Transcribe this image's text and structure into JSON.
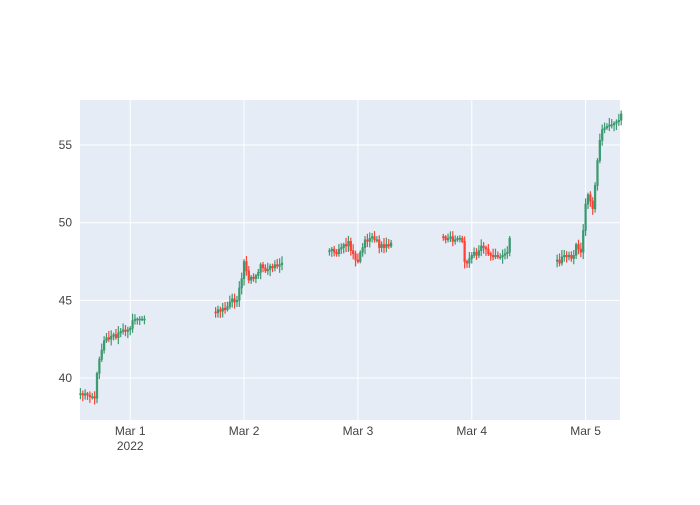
{
  "chart_data": {
    "type": "candlestick",
    "x_axis": {
      "kind": "date",
      "ticks": [
        {
          "value": "2022-03-01",
          "label": "Mar 1",
          "sublabel": "2022"
        },
        {
          "value": "2022-03-02",
          "label": "Mar 2"
        },
        {
          "value": "2022-03-03",
          "label": "Mar 3"
        },
        {
          "value": "2022-03-04",
          "label": "Mar 4"
        },
        {
          "value": "2022-03-05",
          "label": "Mar 5"
        }
      ],
      "range": [
        "2022-02-28 13:25",
        "2022-03-05 07:15"
      ]
    },
    "y_axis": {
      "ticks": [
        40,
        45,
        50,
        55
      ],
      "range": [
        37.3,
        57.9
      ]
    },
    "grid": true,
    "colors": {
      "increasing": "#3D9970",
      "decreasing": "#FF4136",
      "plot_bg": "#E5ECF6",
      "grid": "#FFFFFF"
    },
    "segments": [
      {
        "start": "2022-02-28 13:30",
        "step_minutes": 30,
        "close": [
          39.0,
          38.9,
          39.0,
          38.9,
          38.8,
          38.8,
          38.7,
          40.3,
          41.2,
          41.8,
          42.4,
          42.6,
          42.5,
          42.7,
          42.8,
          42.6,
          42.9,
          43.0,
          43.1,
          43.0,
          43.1,
          43.2,
          43.7,
          43.8,
          43.8,
          43.8,
          43.8,
          43.8
        ]
      },
      {
        "start": "2022-03-01 18:00",
        "step_minutes": 30,
        "close": [
          44.2,
          44.4,
          44.3,
          44.5,
          44.4,
          44.6,
          44.9,
          45.1,
          44.9,
          45.0,
          45.8,
          46.4,
          47.5,
          46.9,
          46.3,
          46.5,
          46.4,
          46.6,
          46.8,
          47.3,
          47.1,
          46.9,
          47.0,
          47.2,
          47.1,
          47.3,
          47.2,
          47.3,
          47.4
        ]
      },
      {
        "start": "2022-03-02 18:00",
        "step_minutes": 30,
        "close": [
          48.2,
          48.3,
          48.1,
          48.0,
          48.3,
          48.4,
          48.6,
          48.5,
          48.8,
          48.2,
          48.0,
          47.6,
          47.5,
          48.1,
          48.4,
          48.9,
          48.8,
          49.0,
          49.1,
          48.9,
          48.9,
          48.4,
          48.6,
          48.4,
          48.6,
          48.5,
          48.7
        ]
      },
      {
        "start": "2022-03-03 18:00",
        "step_minutes": 30,
        "close": [
          49.1,
          48.9,
          49.0,
          49.1,
          48.8,
          48.9,
          49.0,
          49.0,
          48.8,
          47.5,
          47.4,
          47.7,
          47.9,
          48.1,
          47.9,
          48.2,
          48.5,
          48.4,
          48.3,
          48.0,
          47.9,
          47.8,
          47.9,
          47.8,
          47.8,
          47.9,
          48.0,
          48.1,
          49.0
        ]
      },
      {
        "start": "2022-03-04 18:00",
        "step_minutes": 30,
        "close": [
          47.6,
          47.4,
          47.8,
          47.9,
          47.8,
          47.9,
          47.7,
          47.9,
          48.6,
          48.3,
          48.1,
          49.5,
          51.2,
          51.8,
          51.4,
          50.9,
          52.4,
          54.0,
          55.3,
          56.0,
          56.1,
          56.2,
          56.3,
          56.3,
          56.4,
          56.5,
          56.6,
          57.0
        ]
      }
    ]
  }
}
